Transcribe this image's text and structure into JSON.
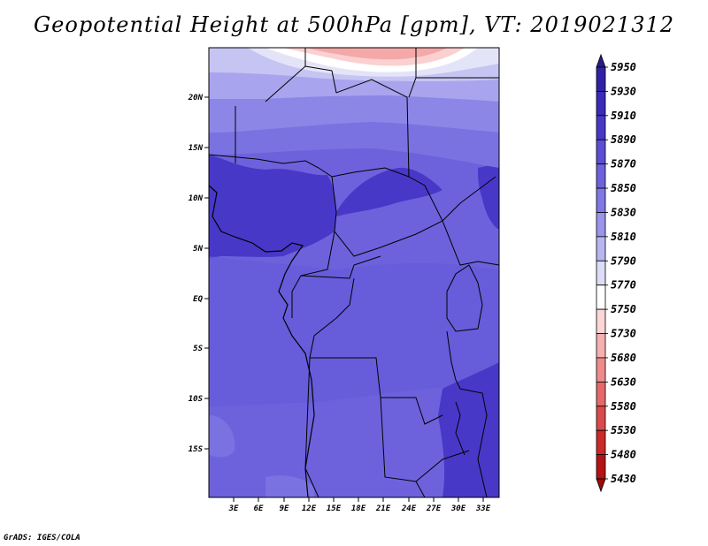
{
  "title": "Geopotential Height at 500hPa [gpm], VT: 2019021312",
  "credit": "GrADS: IGES/COLA",
  "map": {
    "lat_labels": [
      "20N",
      "15N",
      "10N",
      "5N",
      "EQ",
      "5S",
      "10S",
      "15S"
    ],
    "lon_labels": [
      "3E",
      "6E",
      "9E",
      "12E",
      "15E",
      "18E",
      "21E",
      "24E",
      "27E",
      "30E",
      "33E"
    ]
  },
  "colorbar": {
    "levels": [
      "5950",
      "5930",
      "5910",
      "5890",
      "5870",
      "5850",
      "5830",
      "5810",
      "5790",
      "5770",
      "5750",
      "5730",
      "5680",
      "5630",
      "5580",
      "5530",
      "5480",
      "5430"
    ],
    "colors": [
      "#2a1a8c",
      "#3220a4",
      "#3a2cb8",
      "#4838c8",
      "#5c4ed4",
      "#6d62dc",
      "#8078e4",
      "#9a94ea",
      "#b8b6f0",
      "#dcdcf6",
      "#ffffff",
      "#fbd6d6",
      "#f6b0b0",
      "#ee8c8c",
      "#e46a6a",
      "#da4a4a",
      "#cc2a2a",
      "#b41414",
      "#9a0a0a"
    ]
  }
}
